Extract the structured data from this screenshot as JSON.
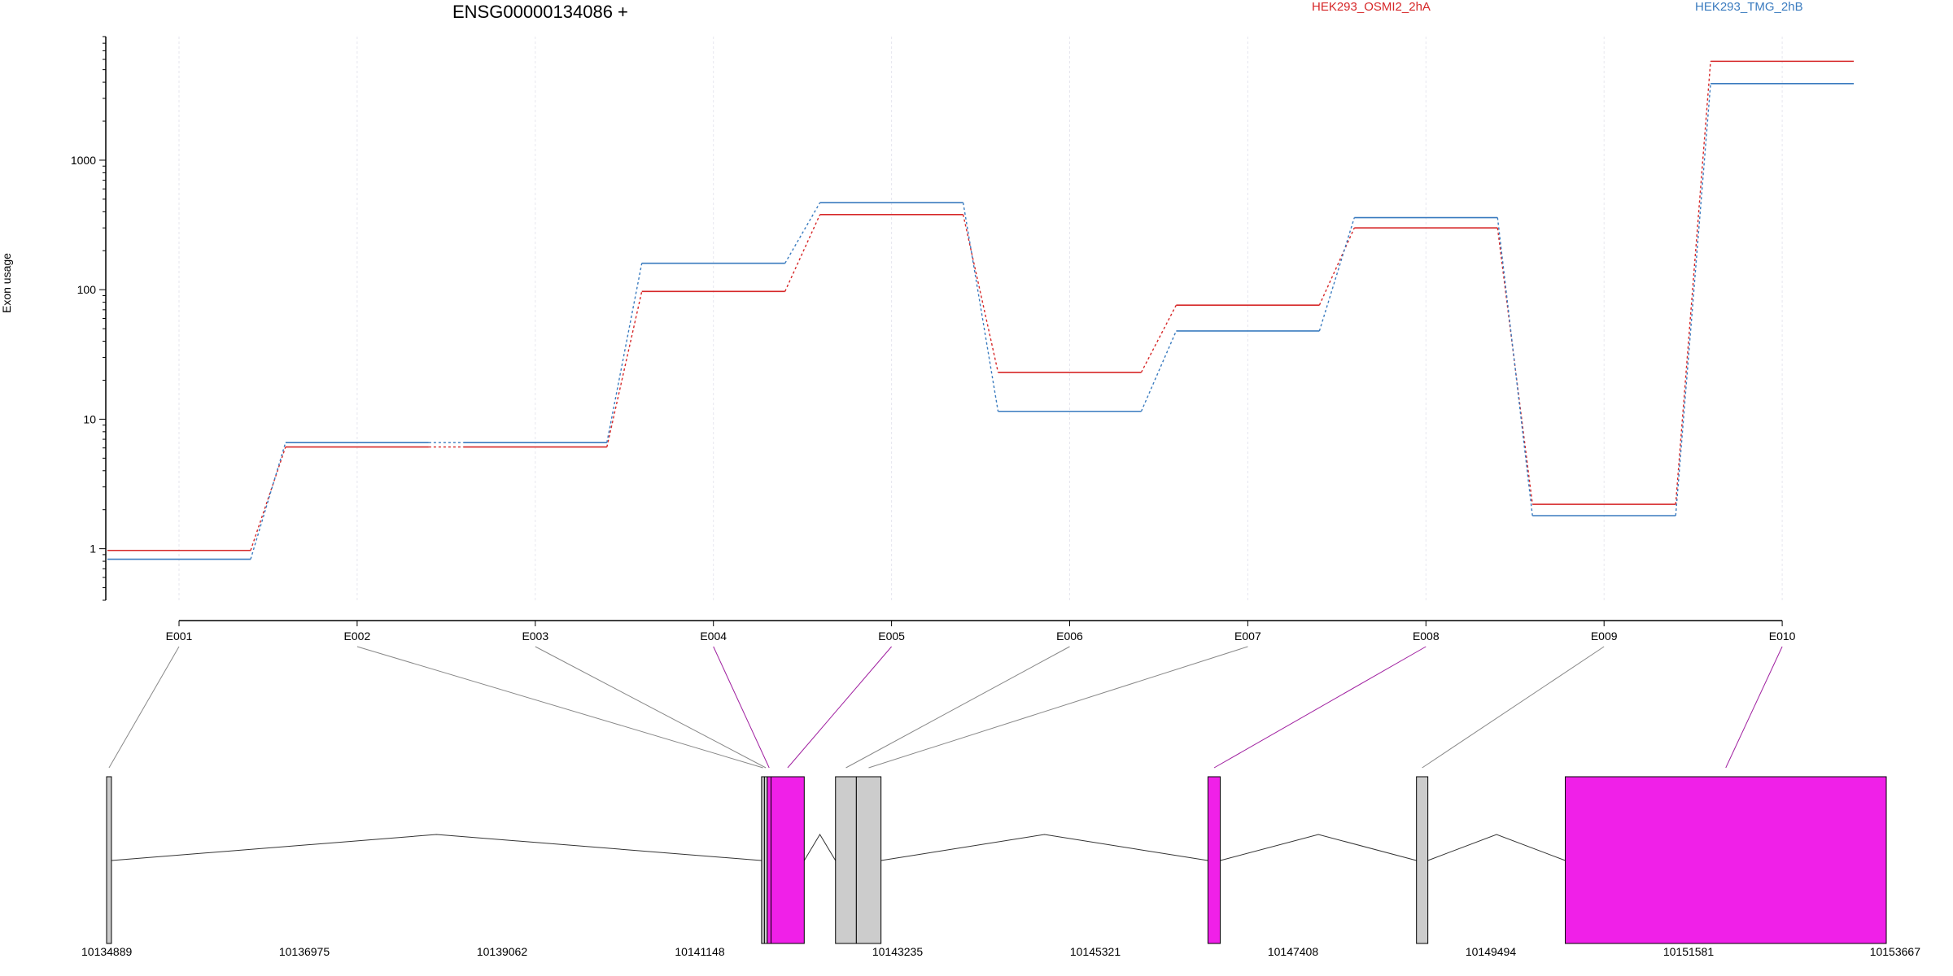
{
  "chart_data": {
    "type": "line",
    "title": "ENSG00000134086 +",
    "ylabel": "Exon usage",
    "yscale": "log",
    "ylim": [
      0.4,
      9000
    ],
    "yticks": [
      1,
      10,
      100,
      1000
    ],
    "grid": "vertical",
    "legend_position": "top-right",
    "categories": [
      "E001",
      "E002",
      "E003",
      "E004",
      "E005",
      "E006",
      "E007",
      "E008",
      "E009",
      "E010"
    ],
    "series": [
      {
        "name": "HEK293_OSMI2_2hA",
        "color": "#d62728",
        "values": [
          0.97,
          6.1,
          6.1,
          97,
          380,
          23,
          76,
          300,
          2.2,
          5800
        ]
      },
      {
        "name": "HEK293_TMG_2hB",
        "color": "#3a7bbf",
        "values": [
          0.83,
          6.6,
          6.6,
          160,
          470,
          11.5,
          48,
          360,
          1.8,
          3900
        ]
      }
    ],
    "gene_model": {
      "coordinate_labels": [
        "10134889",
        "10136975",
        "10139062",
        "10141148",
        "10143235",
        "10145321",
        "10147408",
        "10149494",
        "10151581",
        "10153667"
      ],
      "range": [
        10134889,
        10153667
      ],
      "highlight_color": "#f020e8",
      "exon_color": "#cccccc",
      "exons": [
        {
          "id": "E001",
          "start": 10134889,
          "end": 10134940,
          "highlight": false
        },
        {
          "id": "E002",
          "start": 10141800,
          "end": 10141830,
          "highlight": false
        },
        {
          "id": "E003",
          "start": 10141830,
          "end": 10141860,
          "highlight": false
        },
        {
          "id": "E004",
          "start": 10141860,
          "end": 10141900,
          "highlight": true
        },
        {
          "id": "E005",
          "start": 10141900,
          "end": 10142250,
          "highlight": true
        },
        {
          "id": "E006",
          "start": 10142580,
          "end": 10142800,
          "highlight": false
        },
        {
          "id": "E007",
          "start": 10142800,
          "end": 10143060,
          "highlight": false
        },
        {
          "id": "E008",
          "start": 10146510,
          "end": 10146640,
          "highlight": true
        },
        {
          "id": "E009",
          "start": 10148710,
          "end": 10148830,
          "highlight": false
        },
        {
          "id": "E010",
          "start": 10150280,
          "end": 10153667,
          "highlight": true
        }
      ]
    }
  }
}
